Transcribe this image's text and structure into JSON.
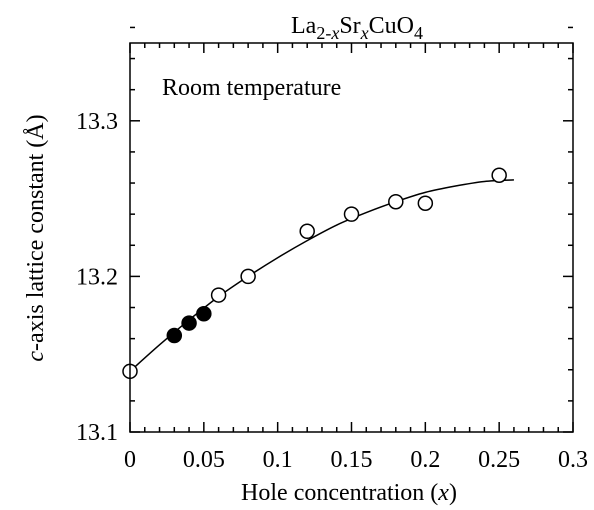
{
  "chart_data": {
    "type": "scatter",
    "title_parts": [
      "La",
      "2-",
      "x",
      "Sr",
      "x",
      "CuO",
      "4"
    ],
    "annotation": "Room temperature",
    "xlabel_prefix": "Hole concentration (",
    "xlabel_var": "x",
    "xlabel_suffix": ")",
    "ylabel_var": "c",
    "ylabel_rest": "-axis  lattice constant (Å)",
    "xlim": [
      0,
      0.3
    ],
    "ylim": [
      13.1,
      13.35
    ],
    "x_ticks": [
      {
        "value": 0,
        "label": "0"
      },
      {
        "value": 0.05,
        "label": "0.05"
      },
      {
        "value": 0.1,
        "label": "0.1"
      },
      {
        "value": 0.15,
        "label": "0.15"
      },
      {
        "value": 0.2,
        "label": "0.2"
      },
      {
        "value": 0.25,
        "label": "0.25"
      },
      {
        "value": 0.3,
        "label": "0.3"
      }
    ],
    "y_ticks": [
      {
        "value": 13.1,
        "label": "13.1"
      },
      {
        "value": 13.2,
        "label": "13.2"
      },
      {
        "value": 13.3,
        "label": "13.3"
      }
    ],
    "x_minor_step": 0.01,
    "y_minor_step": 0.02,
    "series": [
      {
        "marker": "open-circle",
        "points": [
          {
            "x": 0,
            "y": 13.139
          },
          {
            "x": 0.06,
            "y": 13.188
          },
          {
            "x": 0.08,
            "y": 13.2
          },
          {
            "x": 0.12,
            "y": 13.229
          },
          {
            "x": 0.15,
            "y": 13.24
          },
          {
            "x": 0.18,
            "y": 13.248
          },
          {
            "x": 0.2,
            "y": 13.247
          },
          {
            "x": 0.25,
            "y": 13.265
          }
        ]
      },
      {
        "marker": "filled-circle",
        "points": [
          {
            "x": 0.03,
            "y": 13.162
          },
          {
            "x": 0.04,
            "y": 13.17
          },
          {
            "x": 0.05,
            "y": 13.176
          }
        ]
      }
    ],
    "fit_curve": {
      "x": [
        0,
        0.02,
        0.04,
        0.06,
        0.08,
        0.1,
        0.12,
        0.14,
        0.16,
        0.18,
        0.2,
        0.22,
        0.24,
        0.26
      ],
      "y": [
        13.139,
        13.156,
        13.172,
        13.187,
        13.2,
        13.212,
        13.223,
        13.233,
        13.241,
        13.248,
        13.254,
        13.258,
        13.261,
        13.262
      ]
    },
    "colors": {
      "axis": "#000000",
      "marker_fill": "#000000",
      "background": "#ffffff"
    }
  }
}
